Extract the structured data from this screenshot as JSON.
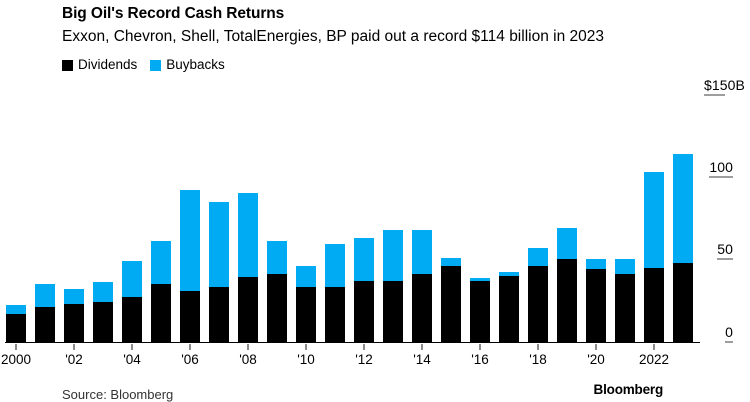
{
  "header": {
    "title": "Big Oil's Record Cash Returns",
    "subtitle": "Exxon, Chevron, Shell, TotalEnergies, BP paid out a record $114 billion in 2023"
  },
  "legend": [
    {
      "label": "Dividends",
      "color": "#000000"
    },
    {
      "label": "Buybacks",
      "color": "#00ABF4"
    }
  ],
  "footer": {
    "source": "Source: Bloomberg",
    "brand": "Bloomberg"
  },
  "chart_data": {
    "type": "bar",
    "stacked": true,
    "title": "Big Oil's Record Cash Returns",
    "subtitle": "Exxon, Chevron, Shell, TotalEnergies, BP paid out a record $114 billion in 2023",
    "unit": "billions of USD",
    "grid": false,
    "legend_position": "top-left",
    "ylim": [
      0,
      150
    ],
    "x": [
      2000,
      2001,
      2002,
      2003,
      2004,
      2005,
      2006,
      2007,
      2008,
      2009,
      2010,
      2011,
      2012,
      2013,
      2014,
      2015,
      2016,
      2017,
      2018,
      2019,
      2020,
      2021,
      2022,
      2023
    ],
    "series": [
      {
        "name": "Dividends",
        "color": "#000000",
        "values": [
          17,
          21,
          23,
          24,
          27,
          35,
          31,
          33,
          39,
          41,
          33,
          33,
          37,
          37,
          41,
          46,
          37,
          40,
          46,
          50,
          44,
          41,
          45,
          48
        ]
      },
      {
        "name": "Buybacks",
        "color": "#00ABF4",
        "values": [
          5,
          14,
          9,
          12,
          22,
          26,
          61,
          52,
          51,
          20,
          13,
          26,
          26,
          31,
          27,
          5,
          1.5,
          2,
          11,
          19,
          6,
          9,
          58,
          66
        ]
      }
    ],
    "yticks": [
      {
        "value": 0,
        "label": "0"
      },
      {
        "value": 50,
        "label": "50"
      },
      {
        "value": 100,
        "label": "100"
      },
      {
        "value": 150,
        "label": "$150B"
      }
    ],
    "xticks": [
      {
        "year": 2000,
        "label": "2000"
      },
      {
        "year": 2002,
        "label": "'02"
      },
      {
        "year": 2004,
        "label": "'04"
      },
      {
        "year": 2006,
        "label": "'06"
      },
      {
        "year": 2008,
        "label": "'08"
      },
      {
        "year": 2010,
        "label": "'10"
      },
      {
        "year": 2012,
        "label": "'12"
      },
      {
        "year": 2014,
        "label": "'14"
      },
      {
        "year": 2016,
        "label": "'16"
      },
      {
        "year": 2018,
        "label": "'18"
      },
      {
        "year": 2020,
        "label": "'20"
      },
      {
        "year": 2022,
        "label": "2022"
      }
    ]
  }
}
